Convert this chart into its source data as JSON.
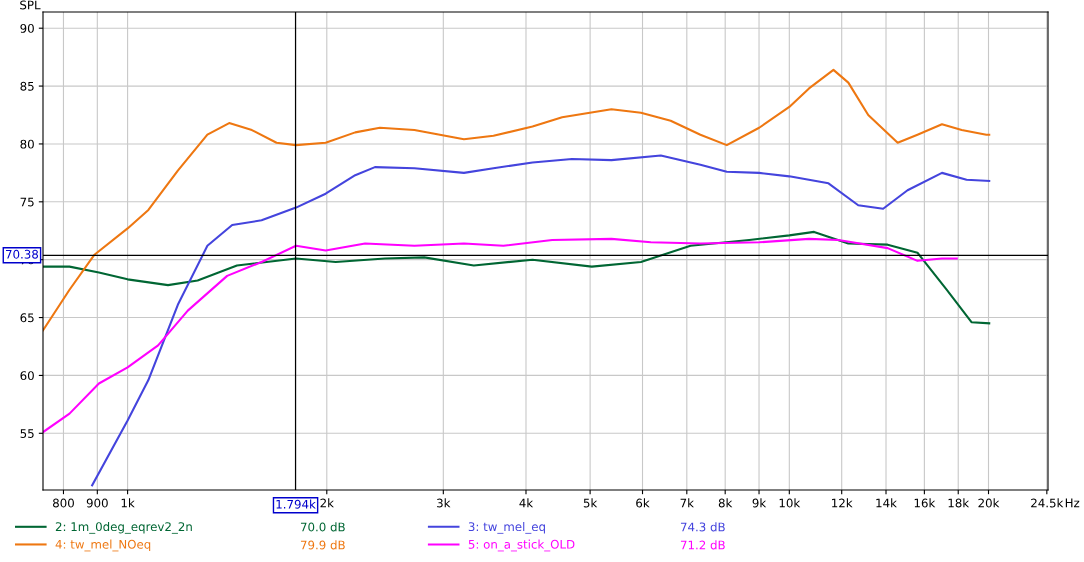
{
  "chart_data": {
    "type": "line",
    "ylabel": "SPL",
    "log": "x",
    "grid": true,
    "legend": "bottom",
    "marker": "none",
    "line_style": "solid",
    "xlim": [
      745,
      24600
    ],
    "ylim": [
      50.1,
      91.4
    ],
    "xticks": [
      {
        "value": 800,
        "label": "800"
      },
      {
        "value": 900,
        "label": "900"
      },
      {
        "value": 1000,
        "label": "1k"
      },
      {
        "value": 2000,
        "label": "2k"
      },
      {
        "value": 3000,
        "label": "3k"
      },
      {
        "value": 4000,
        "label": "4k"
      },
      {
        "value": 5000,
        "label": "5k"
      },
      {
        "value": 6000,
        "label": "6k"
      },
      {
        "value": 7000,
        "label": "7k"
      },
      {
        "value": 8000,
        "label": "8k"
      },
      {
        "value": 9000,
        "label": "9k"
      },
      {
        "value": 10000,
        "label": "10k"
      },
      {
        "value": 12000,
        "label": "12k"
      },
      {
        "value": 14000,
        "label": "14k"
      },
      {
        "value": 16000,
        "label": "16k"
      },
      {
        "value": 18000,
        "label": "18k"
      },
      {
        "value": 20000,
        "label": "20k"
      },
      {
        "value": 24500,
        "label": "24.5k"
      }
    ],
    "xlabel": "Hz",
    "yticks": [
      55,
      60,
      65,
      70,
      75,
      80,
      85,
      90
    ],
    "ref_lines": [
      {
        "axis": "x",
        "value": 1794,
        "label": "1.794k",
        "color": "#000000"
      },
      {
        "axis": "y",
        "value": 70.38,
        "label": "70.38",
        "color": "#000000"
      }
    ],
    "annotations": [
      "70.0 dB",
      "74.3 dB",
      "79.9 dB",
      "71.2 dB"
    ],
    "series": [
      {
        "name": "2: 1m_0deg_eqrev2_2n",
        "color": "#006633",
        "x": [
          745,
          817,
          905,
          1000,
          1151,
          1276,
          1463,
          1797,
          2063,
          2448,
          2808,
          3336,
          4092,
          5029,
          5967,
          7091,
          8698,
          10000,
          10900,
          12280,
          14080,
          15620,
          17300,
          18850,
          20050
        ],
        "values": [
          69.4,
          69.4,
          68.9,
          68.3,
          67.8,
          68.2,
          69.5,
          70.1,
          69.8,
          70.1,
          70.2,
          69.5,
          70.0,
          69.4,
          69.8,
          71.2,
          71.7,
          72.1,
          72.4,
          71.4,
          71.3,
          70.6,
          67.4,
          64.6,
          64.5
        ]
      },
      {
        "name": "3: tw_mel_eq",
        "color": "#4444dd",
        "x": [
          884,
          1000,
          1075,
          1191,
          1320,
          1439,
          1594,
          1797,
          1992,
          2208,
          2365,
          2713,
          3223,
          3572,
          4092,
          4694,
          5385,
          6395,
          7339,
          8045,
          9004,
          10000,
          11460,
          12710,
          13860,
          15090,
          17010,
          18530,
          20050
        ],
        "values": [
          50.5,
          56.1,
          59.6,
          66.1,
          71.2,
          73.0,
          73.4,
          74.5,
          75.7,
          77.3,
          78.0,
          77.9,
          77.5,
          77.9,
          78.4,
          78.7,
          78.6,
          79.0,
          78.2,
          77.6,
          77.5,
          77.2,
          76.6,
          74.7,
          74.4,
          76.0,
          77.5,
          76.9,
          76.8
        ]
      },
      {
        "name": "4: tw_mel_NOeq",
        "color": "#ee7711",
        "x": [
          745,
          817,
          890,
          1000,
          1075,
          1191,
          1320,
          1424,
          1541,
          1679,
          1797,
          1992,
          2208,
          2406,
          2713,
          3223,
          3572,
          4092,
          4536,
          5385,
          5967,
          6618,
          7339,
          8045,
          9004,
          10000,
          10710,
          11660,
          12280,
          13160,
          14580,
          15620,
          17010,
          18220,
          19850,
          20050
        ],
        "values": [
          63.9,
          67.4,
          70.4,
          72.7,
          74.3,
          77.7,
          80.8,
          81.8,
          81.2,
          80.1,
          79.9,
          80.1,
          81.0,
          81.4,
          81.2,
          80.4,
          80.7,
          81.5,
          82.3,
          83.0,
          82.7,
          82.0,
          80.8,
          79.9,
          81.4,
          83.2,
          84.8,
          86.4,
          85.3,
          82.5,
          80.1,
          80.8,
          81.7,
          81.2,
          80.8,
          80.8
        ]
      },
      {
        "name": "5: on_a_stick_OLD",
        "color": "#ff00ff",
        "x": [
          745,
          817,
          905,
          1000,
          1112,
          1233,
          1414,
          1594,
          1797,
          1992,
          2285,
          2713,
          3223,
          3697,
          4382,
          5385,
          6177,
          7339,
          9004,
          10710,
          11860,
          14080,
          15620,
          17010,
          17910
        ],
        "values": [
          55.1,
          56.7,
          59.3,
          60.7,
          62.6,
          65.6,
          68.6,
          69.8,
          71.2,
          70.8,
          71.4,
          71.2,
          71.4,
          71.2,
          71.7,
          71.8,
          71.5,
          71.4,
          71.5,
          71.8,
          71.7,
          71.0,
          69.9,
          70.1,
          70.1
        ]
      }
    ]
  }
}
